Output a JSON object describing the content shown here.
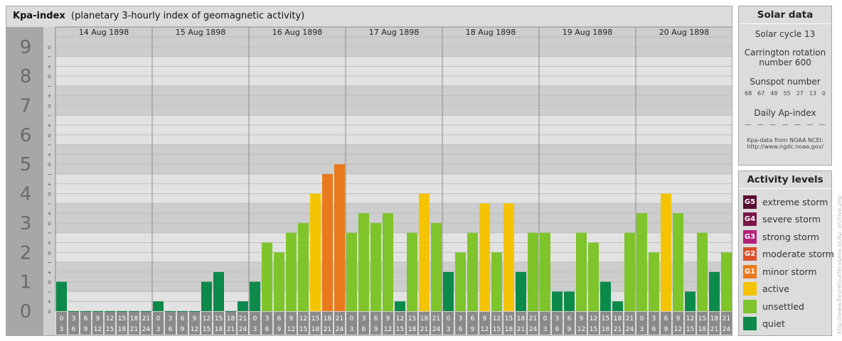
{
  "header": {
    "title": "Kpa-index",
    "subtitle": "(planetary 3-hourly index of geomagnetic activity)"
  },
  "colors": {
    "quiet": "#0c8a4a",
    "unsettled": "#7ec42a",
    "active": "#f5c400",
    "minor": "#e87a1c",
    "moderate": "#d8502a",
    "strong": "#b5207a",
    "severe": "#7a1648",
    "extreme": "#5a0a30"
  },
  "chart_data": {
    "type": "bar",
    "y_label_ticks": [
      "0",
      "1",
      "2",
      "3",
      "4",
      "5",
      "6",
      "7",
      "8",
      "9"
    ],
    "ylim": [
      0,
      9
    ],
    "sub_ticks": [
      "o",
      "+",
      "−"
    ],
    "days": [
      "14 Aug 1898",
      "15 Aug 1898",
      "16 Aug 1898",
      "17 Aug 1898",
      "18 Aug 1898",
      "19 Aug 1898",
      "20 Aug 1898"
    ],
    "interval_top": [
      "0",
      "3",
      "6",
      "9",
      "12",
      "15",
      "18",
      "21"
    ],
    "interval_bottom": [
      "3",
      "6",
      "9",
      "12",
      "15",
      "18",
      "21",
      "24"
    ],
    "values": [
      [
        1.0,
        0.0,
        0.0,
        0.0,
        0.0,
        0.0,
        0.0,
        0.0
      ],
      [
        0.333,
        0.0,
        0.0,
        0.0,
        1.0,
        1.333,
        0.0,
        0.333
      ],
      [
        1.0,
        2.333,
        2.0,
        2.667,
        3.0,
        4.0,
        4.667,
        5.0
      ],
      [
        2.667,
        3.333,
        3.0,
        3.333,
        0.333,
        2.667,
        4.0,
        3.0
      ],
      [
        1.333,
        2.0,
        2.667,
        3.667,
        2.0,
        3.667,
        1.333,
        2.667
      ],
      [
        2.667,
        0.667,
        0.667,
        2.667,
        2.333,
        1.0,
        0.333,
        2.667
      ],
      [
        3.333,
        2.0,
        4.0,
        3.333,
        0.667,
        2.667,
        1.333,
        2.0
      ]
    ]
  },
  "solar": {
    "title": "Solar data",
    "cycle": "Solar cycle 13",
    "carrington_1": "Carrington rotation",
    "carrington_2": "number 600",
    "sunspot_title": "Sunspot number",
    "sunspots": [
      "68",
      "67",
      "48",
      "55",
      "27",
      "13",
      "0"
    ],
    "ap_title": "Daily Ap-index",
    "ap": [
      "—",
      "—",
      "—",
      "—",
      "—",
      "—",
      "—"
    ],
    "source_1": "Kpa-data from NOAA NCEI:",
    "source_2": "http://www.ngdc.noaa.gov/"
  },
  "activity": {
    "title": "Activity levels",
    "items": [
      {
        "code": "G5",
        "label": "extreme storm",
        "color": "#5a0a30"
      },
      {
        "code": "G4",
        "label": "severe storm",
        "color": "#7a1648"
      },
      {
        "code": "G3",
        "label": "strong storm",
        "color": "#b5207a"
      },
      {
        "code": "G2",
        "label": "moderate storm",
        "color": "#d8502a"
      },
      {
        "code": "G1",
        "label": "minor storm",
        "color": "#e87a1c"
      },
      {
        "code": "",
        "label": "active",
        "color": "#f5c400"
      },
      {
        "code": "",
        "label": "unsettled",
        "color": "#7ec42a"
      },
      {
        "code": "",
        "label": "quiet",
        "color": "#0c8a4a"
      }
    ]
  },
  "watermark": "http://www.fleuretsurferalpina.sk/kp_archive.php"
}
